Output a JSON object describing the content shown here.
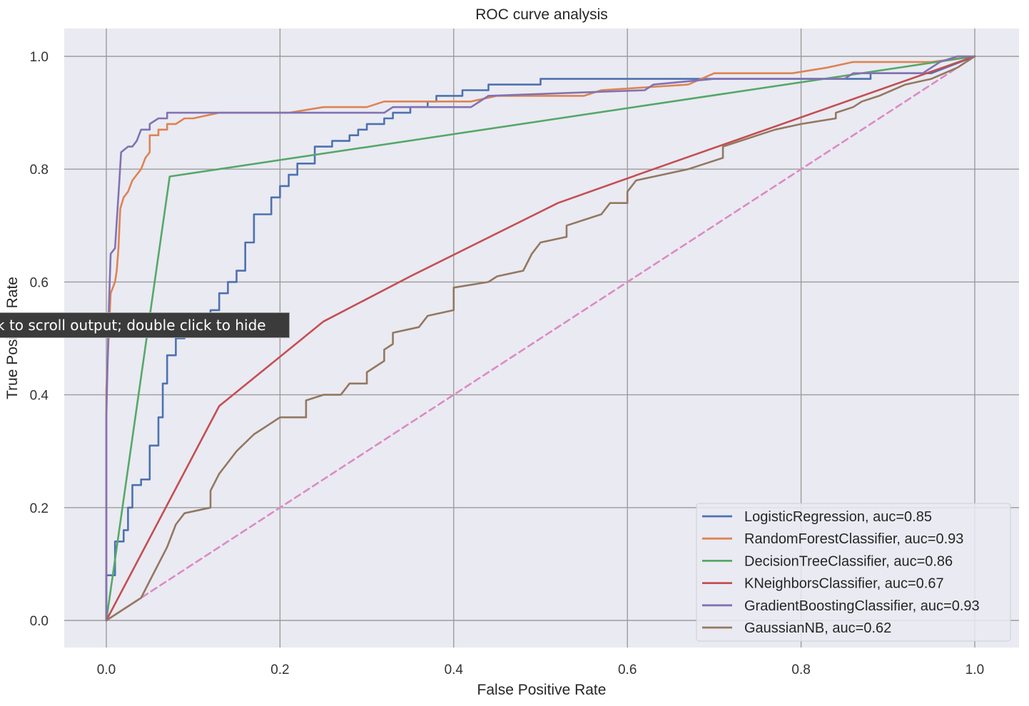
{
  "tooltip": {
    "text": "k to scroll output; double click to hide"
  },
  "chart_data": {
    "type": "line",
    "title": "ROC curve analysis",
    "xlabel": "False Positive Rate",
    "ylabel": "True Positive Rate",
    "xlim": [
      -0.05,
      1.05
    ],
    "ylim": [
      -0.05,
      1.05
    ],
    "grid": true,
    "legend_position": "lower-right",
    "x_ticks": [
      "0.0",
      "0.2",
      "0.4",
      "0.6",
      "0.8",
      "1.0"
    ],
    "y_ticks": [
      "0.0",
      "0.2",
      "0.4",
      "0.6",
      "0.8",
      "1.0"
    ],
    "series": [
      {
        "name": "LogisticRegression, auc=0.85",
        "color": "#4c72b0",
        "points": [
          [
            0,
            0
          ],
          [
            0,
            0.08
          ],
          [
            0.01,
            0.08
          ],
          [
            0.01,
            0.14
          ],
          [
            0.02,
            0.14
          ],
          [
            0.02,
            0.16
          ],
          [
            0.025,
            0.16
          ],
          [
            0.025,
            0.2
          ],
          [
            0.03,
            0.2
          ],
          [
            0.03,
            0.24
          ],
          [
            0.04,
            0.24
          ],
          [
            0.04,
            0.25
          ],
          [
            0.05,
            0.25
          ],
          [
            0.05,
            0.31
          ],
          [
            0.06,
            0.31
          ],
          [
            0.06,
            0.36
          ],
          [
            0.065,
            0.36
          ],
          [
            0.065,
            0.42
          ],
          [
            0.07,
            0.42
          ],
          [
            0.07,
            0.47
          ],
          [
            0.08,
            0.47
          ],
          [
            0.08,
            0.5
          ],
          [
            0.09,
            0.5
          ],
          [
            0.09,
            0.52
          ],
          [
            0.12,
            0.52
          ],
          [
            0.12,
            0.55
          ],
          [
            0.13,
            0.55
          ],
          [
            0.13,
            0.58
          ],
          [
            0.14,
            0.58
          ],
          [
            0.14,
            0.6
          ],
          [
            0.15,
            0.6
          ],
          [
            0.15,
            0.62
          ],
          [
            0.16,
            0.62
          ],
          [
            0.16,
            0.67
          ],
          [
            0.17,
            0.67
          ],
          [
            0.17,
            0.72
          ],
          [
            0.19,
            0.72
          ],
          [
            0.19,
            0.75
          ],
          [
            0.2,
            0.75
          ],
          [
            0.2,
            0.77
          ],
          [
            0.21,
            0.77
          ],
          [
            0.21,
            0.79
          ],
          [
            0.22,
            0.79
          ],
          [
            0.22,
            0.81
          ],
          [
            0.24,
            0.81
          ],
          [
            0.24,
            0.84
          ],
          [
            0.26,
            0.84
          ],
          [
            0.26,
            0.85
          ],
          [
            0.28,
            0.85
          ],
          [
            0.28,
            0.86
          ],
          [
            0.29,
            0.86
          ],
          [
            0.29,
            0.87
          ],
          [
            0.3,
            0.87
          ],
          [
            0.3,
            0.88
          ],
          [
            0.32,
            0.88
          ],
          [
            0.32,
            0.89
          ],
          [
            0.33,
            0.89
          ],
          [
            0.33,
            0.9
          ],
          [
            0.35,
            0.9
          ],
          [
            0.35,
            0.91
          ],
          [
            0.37,
            0.91
          ],
          [
            0.37,
            0.92
          ],
          [
            0.38,
            0.92
          ],
          [
            0.38,
            0.93
          ],
          [
            0.41,
            0.93
          ],
          [
            0.41,
            0.94
          ],
          [
            0.44,
            0.94
          ],
          [
            0.44,
            0.95
          ],
          [
            0.5,
            0.95
          ],
          [
            0.5,
            0.96
          ],
          [
            0.63,
            0.96
          ],
          [
            0.63,
            0.96
          ],
          [
            0.88,
            0.96
          ],
          [
            0.88,
            0.97
          ],
          [
            0.95,
            0.97
          ],
          [
            1,
            1
          ]
        ]
      },
      {
        "name": "RandomForestClassifier, auc=0.93",
        "color": "#dd8452",
        "points": [
          [
            0,
            0
          ],
          [
            0,
            0.41
          ],
          [
            0.005,
            0.58
          ],
          [
            0.01,
            0.6
          ],
          [
            0.012,
            0.62
          ],
          [
            0.014,
            0.66
          ],
          [
            0.016,
            0.73
          ],
          [
            0.02,
            0.75
          ],
          [
            0.025,
            0.76
          ],
          [
            0.03,
            0.78
          ],
          [
            0.035,
            0.79
          ],
          [
            0.04,
            0.8
          ],
          [
            0.045,
            0.82
          ],
          [
            0.05,
            0.83
          ],
          [
            0.05,
            0.86
          ],
          [
            0.06,
            0.86
          ],
          [
            0.06,
            0.87
          ],
          [
            0.07,
            0.87
          ],
          [
            0.07,
            0.88
          ],
          [
            0.08,
            0.88
          ],
          [
            0.09,
            0.89
          ],
          [
            0.1,
            0.89
          ],
          [
            0.13,
            0.9
          ],
          [
            0.2,
            0.9
          ],
          [
            0.21,
            0.9
          ],
          [
            0.25,
            0.91
          ],
          [
            0.3,
            0.91
          ],
          [
            0.32,
            0.92
          ],
          [
            0.38,
            0.92
          ],
          [
            0.42,
            0.92
          ],
          [
            0.45,
            0.93
          ],
          [
            0.55,
            0.93
          ],
          [
            0.57,
            0.94
          ],
          [
            0.67,
            0.95
          ],
          [
            0.7,
            0.97
          ],
          [
            0.79,
            0.97
          ],
          [
            0.83,
            0.98
          ],
          [
            0.86,
            0.99
          ],
          [
            0.95,
            0.99
          ],
          [
            1,
            1
          ]
        ]
      },
      {
        "name": "DecisionTreeClassifier, auc=0.86",
        "color": "#55a868",
        "points": [
          [
            0,
            0
          ],
          [
            0.073,
            0.787
          ],
          [
            1,
            1
          ]
        ]
      },
      {
        "name": "KNeighborsClassifier, auc=0.67",
        "color": "#c44e52",
        "points": [
          [
            0,
            0
          ],
          [
            0.13,
            0.38
          ],
          [
            0.25,
            0.53
          ],
          [
            0.35,
            0.61
          ],
          [
            0.52,
            0.74
          ],
          [
            0.63,
            0.8
          ],
          [
            1,
            1
          ]
        ]
      },
      {
        "name": "GradientBoostingClassifier, auc=0.93",
        "color": "#8172b3",
        "points": [
          [
            0,
            0
          ],
          [
            0,
            0.36
          ],
          [
            0.003,
            0.56
          ],
          [
            0.005,
            0.65
          ],
          [
            0.01,
            0.66
          ],
          [
            0.015,
            0.78
          ],
          [
            0.017,
            0.83
          ],
          [
            0.025,
            0.84
          ],
          [
            0.03,
            0.84
          ],
          [
            0.035,
            0.85
          ],
          [
            0.04,
            0.87
          ],
          [
            0.05,
            0.87
          ],
          [
            0.05,
            0.88
          ],
          [
            0.06,
            0.89
          ],
          [
            0.07,
            0.89
          ],
          [
            0.07,
            0.9
          ],
          [
            0.13,
            0.9
          ],
          [
            0.32,
            0.9
          ],
          [
            0.33,
            0.91
          ],
          [
            0.42,
            0.91
          ],
          [
            0.44,
            0.93
          ],
          [
            0.62,
            0.94
          ],
          [
            0.63,
            0.95
          ],
          [
            0.7,
            0.96
          ],
          [
            0.85,
            0.96
          ],
          [
            0.86,
            0.97
          ],
          [
            0.94,
            0.97
          ],
          [
            0.95,
            0.98
          ],
          [
            0.96,
            0.99
          ],
          [
            0.98,
            1
          ],
          [
            1,
            1
          ]
        ]
      },
      {
        "name": "GaussianNB, auc=0.62",
        "color": "#937860",
        "points": [
          [
            0,
            0
          ],
          [
            0.04,
            0.04
          ],
          [
            0.05,
            0.07
          ],
          [
            0.06,
            0.1
          ],
          [
            0.07,
            0.13
          ],
          [
            0.08,
            0.17
          ],
          [
            0.09,
            0.19
          ],
          [
            0.12,
            0.2
          ],
          [
            0.12,
            0.23
          ],
          [
            0.13,
            0.26
          ],
          [
            0.14,
            0.28
          ],
          [
            0.15,
            0.3
          ],
          [
            0.17,
            0.33
          ],
          [
            0.18,
            0.34
          ],
          [
            0.19,
            0.35
          ],
          [
            0.2,
            0.36
          ],
          [
            0.23,
            0.36
          ],
          [
            0.23,
            0.39
          ],
          [
            0.25,
            0.4
          ],
          [
            0.27,
            0.4
          ],
          [
            0.28,
            0.42
          ],
          [
            0.3,
            0.42
          ],
          [
            0.3,
            0.44
          ],
          [
            0.31,
            0.45
          ],
          [
            0.32,
            0.46
          ],
          [
            0.32,
            0.48
          ],
          [
            0.33,
            0.49
          ],
          [
            0.33,
            0.51
          ],
          [
            0.36,
            0.52
          ],
          [
            0.37,
            0.54
          ],
          [
            0.4,
            0.55
          ],
          [
            0.4,
            0.59
          ],
          [
            0.44,
            0.6
          ],
          [
            0.45,
            0.61
          ],
          [
            0.48,
            0.62
          ],
          [
            0.49,
            0.65
          ],
          [
            0.5,
            0.67
          ],
          [
            0.53,
            0.68
          ],
          [
            0.53,
            0.7
          ],
          [
            0.55,
            0.71
          ],
          [
            0.57,
            0.72
          ],
          [
            0.58,
            0.74
          ],
          [
            0.6,
            0.74
          ],
          [
            0.6,
            0.76
          ],
          [
            0.61,
            0.78
          ],
          [
            0.64,
            0.79
          ],
          [
            0.67,
            0.8
          ],
          [
            0.69,
            0.81
          ],
          [
            0.71,
            0.82
          ],
          [
            0.71,
            0.84
          ],
          [
            0.73,
            0.85
          ],
          [
            0.75,
            0.86
          ],
          [
            0.77,
            0.87
          ],
          [
            0.8,
            0.88
          ],
          [
            0.84,
            0.89
          ],
          [
            0.84,
            0.9
          ],
          [
            0.86,
            0.91
          ],
          [
            0.87,
            0.92
          ],
          [
            0.89,
            0.93
          ],
          [
            0.92,
            0.95
          ],
          [
            0.95,
            0.96
          ],
          [
            0.98,
            0.98
          ],
          [
            1,
            1
          ]
        ]
      },
      {
        "name": "",
        "color": "#da8bc3",
        "dashed": true,
        "points": [
          [
            0,
            0
          ],
          [
            1,
            1
          ]
        ]
      }
    ]
  }
}
